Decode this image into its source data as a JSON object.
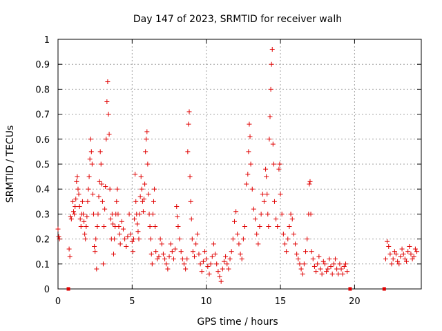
{
  "chart_data": {
    "type": "scatter",
    "title": "Day 147 of 2023, SRMTID for receiver walh",
    "xlabel": "GPS time / hours",
    "ylabel": "SRMTID / TECUs",
    "xlim": [
      0,
      24.5
    ],
    "ylim": [
      0,
      1
    ],
    "grid": true,
    "legend": "none",
    "marker": "plus",
    "color": "#e00000",
    "xticks": [
      0,
      5,
      10,
      15,
      20
    ],
    "yticks": [
      0,
      0.1,
      0.2,
      0.3,
      0.4,
      0.5,
      0.6,
      0.7,
      0.8,
      0.9,
      1
    ],
    "xtick_labels": [
      "0",
      "5",
      "10",
      "15",
      "20"
    ],
    "ytick_labels": [
      "0",
      "0.1",
      "0.2",
      "0.3",
      "0.4",
      "0.5",
      "0.6",
      "0.7",
      "0.8",
      "0.9",
      "1"
    ],
    "data_gaps_at_zero": [
      0.7,
      19.7,
      22.0
    ],
    "series": [
      {
        "name": "SRMTID",
        "points": [
          [
            0.0,
            0.24
          ],
          [
            0.05,
            0.21
          ],
          [
            0.1,
            0.2
          ],
          [
            0.75,
            0.16
          ],
          [
            0.8,
            0.13
          ],
          [
            0.85,
            0.29
          ],
          [
            0.9,
            0.28
          ],
          [
            1.0,
            0.35
          ],
          [
            1.05,
            0.31
          ],
          [
            1.1,
            0.3
          ],
          [
            1.15,
            0.33
          ],
          [
            1.2,
            0.36
          ],
          [
            1.25,
            0.43
          ],
          [
            1.3,
            0.45
          ],
          [
            1.35,
            0.4
          ],
          [
            1.4,
            0.38
          ],
          [
            1.45,
            0.33
          ],
          [
            1.5,
            0.28
          ],
          [
            1.55,
            0.25
          ],
          [
            1.6,
            0.3
          ],
          [
            1.65,
            0.35
          ],
          [
            1.7,
            0.3
          ],
          [
            1.75,
            0.27
          ],
          [
            1.8,
            0.22
          ],
          [
            1.85,
            0.2
          ],
          [
            1.9,
            0.25
          ],
          [
            1.95,
            0.29
          ],
          [
            2.0,
            0.35
          ],
          [
            2.05,
            0.4
          ],
          [
            2.1,
            0.45
          ],
          [
            2.15,
            0.52
          ],
          [
            2.2,
            0.6
          ],
          [
            2.25,
            0.55
          ],
          [
            2.3,
            0.5
          ],
          [
            2.35,
            0.38
          ],
          [
            2.4,
            0.3
          ],
          [
            2.45,
            0.17
          ],
          [
            2.5,
            0.15
          ],
          [
            2.55,
            0.2
          ],
          [
            2.6,
            0.08
          ],
          [
            2.65,
            0.25
          ],
          [
            2.7,
            0.3
          ],
          [
            2.75,
            0.37
          ],
          [
            2.8,
            0.43
          ],
          [
            2.85,
            0.55
          ],
          [
            2.9,
            0.5
          ],
          [
            2.95,
            0.42
          ],
          [
            3.0,
            0.35
          ],
          [
            3.05,
            0.1
          ],
          [
            3.1,
            0.25
          ],
          [
            3.15,
            0.32
          ],
          [
            3.2,
            0.41
          ],
          [
            3.25,
            0.6
          ],
          [
            3.3,
            0.75
          ],
          [
            3.35,
            0.83
          ],
          [
            3.4,
            0.7
          ],
          [
            3.45,
            0.62
          ],
          [
            3.5,
            0.4
          ],
          [
            3.55,
            0.28
          ],
          [
            3.6,
            0.2
          ],
          [
            3.65,
            0.3
          ],
          [
            3.7,
            0.26
          ],
          [
            3.75,
            0.14
          ],
          [
            3.8,
            0.2
          ],
          [
            3.85,
            0.25
          ],
          [
            3.9,
            0.3
          ],
          [
            3.95,
            0.35
          ],
          [
            4.0,
            0.4
          ],
          [
            4.05,
            0.3
          ],
          [
            4.1,
            0.25
          ],
          [
            4.15,
            0.22
          ],
          [
            4.2,
            0.18
          ],
          [
            4.3,
            0.27
          ],
          [
            4.4,
            0.24
          ],
          [
            4.5,
            0.2
          ],
          [
            4.6,
            0.17
          ],
          [
            4.7,
            0.21
          ],
          [
            4.8,
            0.3
          ],
          [
            4.9,
            0.22
          ],
          [
            5.0,
            0.19
          ],
          [
            5.05,
            0.15
          ],
          [
            5.1,
            0.2
          ],
          [
            5.15,
            0.28
          ],
          [
            5.2,
            0.46
          ],
          [
            5.25,
            0.35
          ],
          [
            5.3,
            0.3
          ],
          [
            5.35,
            0.26
          ],
          [
            5.4,
            0.23
          ],
          [
            5.45,
            0.2
          ],
          [
            5.5,
            0.3
          ],
          [
            5.55,
            0.37
          ],
          [
            5.6,
            0.45
          ],
          [
            5.65,
            0.4
          ],
          [
            5.7,
            0.35
          ],
          [
            5.75,
            0.31
          ],
          [
            5.8,
            0.36
          ],
          [
            5.85,
            0.42
          ],
          [
            5.9,
            0.55
          ],
          [
            5.95,
            0.6
          ],
          [
            6.0,
            0.63
          ],
          [
            6.05,
            0.5
          ],
          [
            6.1,
            0.38
          ],
          [
            6.15,
            0.3
          ],
          [
            6.2,
            0.25
          ],
          [
            6.25,
            0.2
          ],
          [
            6.3,
            0.14
          ],
          [
            6.35,
            0.1
          ],
          [
            6.4,
            0.3
          ],
          [
            6.45,
            0.35
          ],
          [
            6.5,
            0.4
          ],
          [
            6.55,
            0.25
          ],
          [
            6.6,
            0.15
          ],
          [
            6.7,
            0.12
          ],
          [
            6.8,
            0.13
          ],
          [
            6.9,
            0.2
          ],
          [
            7.0,
            0.18
          ],
          [
            7.1,
            0.14
          ],
          [
            7.2,
            0.12
          ],
          [
            7.3,
            0.1
          ],
          [
            7.4,
            0.08
          ],
          [
            7.5,
            0.13
          ],
          [
            7.6,
            0.18
          ],
          [
            7.7,
            0.15
          ],
          [
            7.8,
            0.12
          ],
          [
            7.9,
            0.16
          ],
          [
            8.0,
            0.33
          ],
          [
            8.05,
            0.29
          ],
          [
            8.1,
            0.25
          ],
          [
            8.2,
            0.2
          ],
          [
            8.3,
            0.15
          ],
          [
            8.4,
            0.12
          ],
          [
            8.5,
            0.1
          ],
          [
            8.6,
            0.08
          ],
          [
            8.7,
            0.12
          ],
          [
            8.75,
            0.55
          ],
          [
            8.8,
            0.66
          ],
          [
            8.85,
            0.71
          ],
          [
            8.9,
            0.45
          ],
          [
            8.95,
            0.35
          ],
          [
            9.0,
            0.28
          ],
          [
            9.05,
            0.2
          ],
          [
            9.1,
            0.15
          ],
          [
            9.2,
            0.13
          ],
          [
            9.3,
            0.18
          ],
          [
            9.4,
            0.22
          ],
          [
            9.5,
            0.14
          ],
          [
            9.6,
            0.1
          ],
          [
            9.7,
            0.07
          ],
          [
            9.8,
            0.11
          ],
          [
            9.9,
            0.15
          ],
          [
            10.0,
            0.12
          ],
          [
            10.1,
            0.09
          ],
          [
            10.2,
            0.06
          ],
          [
            10.3,
            0.1
          ],
          [
            10.4,
            0.13
          ],
          [
            10.5,
            0.18
          ],
          [
            10.6,
            0.14
          ],
          [
            10.7,
            0.1
          ],
          [
            10.8,
            0.07
          ],
          [
            10.9,
            0.05
          ],
          [
            11.0,
            0.03
          ],
          [
            11.1,
            0.08
          ],
          [
            11.2,
            0.11
          ],
          [
            11.3,
            0.13
          ],
          [
            11.4,
            0.1
          ],
          [
            11.5,
            0.08
          ],
          [
            11.6,
            0.12
          ],
          [
            11.7,
            0.15
          ],
          [
            11.8,
            0.2
          ],
          [
            11.9,
            0.27
          ],
          [
            12.0,
            0.31
          ],
          [
            12.1,
            0.22
          ],
          [
            12.2,
            0.18
          ],
          [
            12.3,
            0.14
          ],
          [
            12.4,
            0.12
          ],
          [
            12.5,
            0.2
          ],
          [
            12.6,
            0.25
          ],
          [
            12.7,
            0.42
          ],
          [
            12.8,
            0.46
          ],
          [
            12.85,
            0.55
          ],
          [
            12.9,
            0.66
          ],
          [
            12.95,
            0.61
          ],
          [
            13.0,
            0.5
          ],
          [
            13.1,
            0.4
          ],
          [
            13.2,
            0.32
          ],
          [
            13.3,
            0.28
          ],
          [
            13.4,
            0.22
          ],
          [
            13.5,
            0.18
          ],
          [
            13.6,
            0.25
          ],
          [
            13.7,
            0.3
          ],
          [
            13.8,
            0.38
          ],
          [
            13.9,
            0.35
          ],
          [
            14.0,
            0.48
          ],
          [
            14.05,
            0.45
          ],
          [
            14.1,
            0.38
          ],
          [
            14.15,
            0.3
          ],
          [
            14.2,
            0.25
          ],
          [
            14.25,
            0.6
          ],
          [
            14.3,
            0.69
          ],
          [
            14.35,
            0.8
          ],
          [
            14.4,
            0.9
          ],
          [
            14.45,
            0.96
          ],
          [
            14.5,
            0.58
          ],
          [
            14.55,
            0.5
          ],
          [
            14.6,
            0.35
          ],
          [
            14.7,
            0.28
          ],
          [
            14.8,
            0.25
          ],
          [
            14.9,
            0.48
          ],
          [
            14.95,
            0.5
          ],
          [
            15.0,
            0.38
          ],
          [
            15.1,
            0.3
          ],
          [
            15.2,
            0.22
          ],
          [
            15.3,
            0.18
          ],
          [
            15.4,
            0.15
          ],
          [
            15.5,
            0.2
          ],
          [
            15.6,
            0.25
          ],
          [
            15.7,
            0.3
          ],
          [
            15.8,
            0.28
          ],
          [
            15.9,
            0.22
          ],
          [
            16.0,
            0.18
          ],
          [
            16.1,
            0.14
          ],
          [
            16.2,
            0.12
          ],
          [
            16.3,
            0.1
          ],
          [
            16.4,
            0.08
          ],
          [
            16.5,
            0.06
          ],
          [
            16.6,
            0.1
          ],
          [
            16.7,
            0.15
          ],
          [
            16.8,
            0.2
          ],
          [
            16.9,
            0.3
          ],
          [
            16.95,
            0.42
          ],
          [
            17.0,
            0.43
          ],
          [
            17.05,
            0.3
          ],
          [
            17.1,
            0.15
          ],
          [
            17.2,
            0.12
          ],
          [
            17.3,
            0.09
          ],
          [
            17.4,
            0.07
          ],
          [
            17.5,
            0.1
          ],
          [
            17.6,
            0.13
          ],
          [
            17.7,
            0.08
          ],
          [
            17.8,
            0.06
          ],
          [
            17.9,
            0.11
          ],
          [
            18.0,
            0.1
          ],
          [
            18.1,
            0.07
          ],
          [
            18.2,
            0.08
          ],
          [
            18.3,
            0.12
          ],
          [
            18.4,
            0.09
          ],
          [
            18.5,
            0.06
          ],
          [
            18.6,
            0.1
          ],
          [
            18.7,
            0.12
          ],
          [
            18.8,
            0.08
          ],
          [
            18.9,
            0.06
          ],
          [
            19.0,
            0.1
          ],
          [
            19.1,
            0.08
          ],
          [
            19.2,
            0.06
          ],
          [
            19.3,
            0.09
          ],
          [
            19.4,
            0.1
          ],
          [
            19.5,
            0.07
          ],
          [
            22.1,
            0.12
          ],
          [
            22.2,
            0.19
          ],
          [
            22.3,
            0.17
          ],
          [
            22.4,
            0.14
          ],
          [
            22.5,
            0.1
          ],
          [
            22.6,
            0.12
          ],
          [
            22.7,
            0.15
          ],
          [
            22.8,
            0.14
          ],
          [
            22.9,
            0.11
          ],
          [
            23.0,
            0.1
          ],
          [
            23.1,
            0.13
          ],
          [
            23.2,
            0.16
          ],
          [
            23.3,
            0.14
          ],
          [
            23.4,
            0.12
          ],
          [
            23.5,
            0.11
          ],
          [
            23.6,
            0.15
          ],
          [
            23.7,
            0.17
          ],
          [
            23.8,
            0.14
          ],
          [
            23.9,
            0.12
          ],
          [
            24.0,
            0.13
          ],
          [
            24.1,
            0.16
          ],
          [
            24.2,
            0.15
          ]
        ]
      }
    ]
  }
}
